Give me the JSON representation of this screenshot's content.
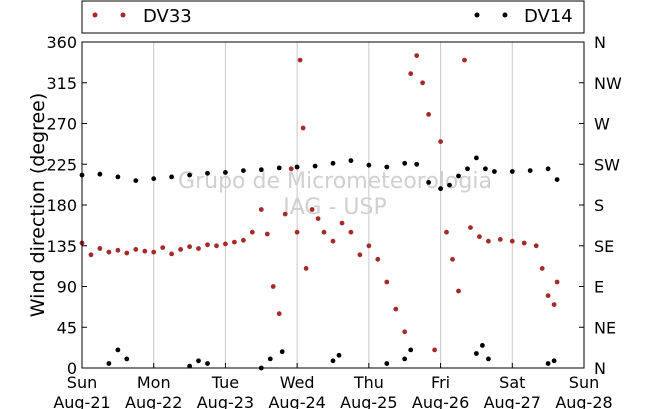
{
  "chart_data": {
    "type": "scatter",
    "ylabel": "Wind direction (degree)",
    "ylim": [
      0,
      360
    ],
    "y_ticks": [
      0,
      45,
      90,
      135,
      180,
      225,
      270,
      315,
      360
    ],
    "y_ticks_right": [
      "N",
      "NE",
      "E",
      "SE",
      "S",
      "SW",
      "W",
      "NW",
      "N"
    ],
    "xlim": [
      "2014-08-21",
      "2014-08-28"
    ],
    "x_ticks": [
      {
        "day": "Sun",
        "date": "Aug-21"
      },
      {
        "day": "Mon",
        "date": "Aug-22"
      },
      {
        "day": "Tue",
        "date": "Aug-23"
      },
      {
        "day": "Wed",
        "date": "Aug-24"
      },
      {
        "day": "Thu",
        "date": "Aug-25"
      },
      {
        "day": "Fri",
        "date": "Aug-26"
      },
      {
        "day": "Sat",
        "date": "Aug-27"
      },
      {
        "day": "Sun",
        "date": "Aug-28"
      }
    ],
    "grid": "vertical",
    "legend_position": "top",
    "watermark": [
      "Grupo de Micrometeorologia",
      "IAG - USP"
    ],
    "series": [
      {
        "name": "DV33",
        "color": "#a52a2a",
        "points": [
          [
            "2014-08-21 00:00",
            138
          ],
          [
            "2014-08-21 03:00",
            125
          ],
          [
            "2014-08-21 06:00",
            132
          ],
          [
            "2014-08-21 09:00",
            128
          ],
          [
            "2014-08-21 12:00",
            130
          ],
          [
            "2014-08-21 15:00",
            127
          ],
          [
            "2014-08-21 18:00",
            131
          ],
          [
            "2014-08-21 21:00",
            129
          ],
          [
            "2014-08-22 00:00",
            128
          ],
          [
            "2014-08-22 03:00",
            133
          ],
          [
            "2014-08-22 06:00",
            126
          ],
          [
            "2014-08-22 09:00",
            131
          ],
          [
            "2014-08-22 12:00",
            134
          ],
          [
            "2014-08-22 15:00",
            132
          ],
          [
            "2014-08-22 18:00",
            136
          ],
          [
            "2014-08-22 21:00",
            135
          ],
          [
            "2014-08-23 00:00",
            137
          ],
          [
            "2014-08-23 03:00",
            139
          ],
          [
            "2014-08-23 06:00",
            141
          ],
          [
            "2014-08-23 09:00",
            150
          ],
          [
            "2014-08-23 12:00",
            175
          ],
          [
            "2014-08-23 14:00",
            148
          ],
          [
            "2014-08-23 16:00",
            90
          ],
          [
            "2014-08-23 18:00",
            60
          ],
          [
            "2014-08-23 20:00",
            170
          ],
          [
            "2014-08-23 22:00",
            220
          ],
          [
            "2014-08-24 00:00",
            150
          ],
          [
            "2014-08-24 01:00",
            340
          ],
          [
            "2014-08-24 02:00",
            265
          ],
          [
            "2014-08-24 03:00",
            110
          ],
          [
            "2014-08-24 05:00",
            175
          ],
          [
            "2014-08-24 07:00",
            165
          ],
          [
            "2014-08-24 09:00",
            150
          ],
          [
            "2014-08-24 12:00",
            140
          ],
          [
            "2014-08-24 15:00",
            160
          ],
          [
            "2014-08-24 18:00",
            150
          ],
          [
            "2014-08-24 21:00",
            125
          ],
          [
            "2014-08-25 00:00",
            135
          ],
          [
            "2014-08-25 03:00",
            120
          ],
          [
            "2014-08-25 06:00",
            95
          ],
          [
            "2014-08-25 09:00",
            65
          ],
          [
            "2014-08-25 12:00",
            40
          ],
          [
            "2014-08-25 14:00",
            325
          ],
          [
            "2014-08-25 16:00",
            345
          ],
          [
            "2014-08-25 18:00",
            315
          ],
          [
            "2014-08-25 20:00",
            280
          ],
          [
            "2014-08-25 22:00",
            20
          ],
          [
            "2014-08-26 00:00",
            250
          ],
          [
            "2014-08-26 02:00",
            150
          ],
          [
            "2014-08-26 04:00",
            120
          ],
          [
            "2014-08-26 06:00",
            85
          ],
          [
            "2014-08-26 08:00",
            340
          ],
          [
            "2014-08-26 10:00",
            155
          ],
          [
            "2014-08-26 13:00",
            145
          ],
          [
            "2014-08-26 16:00",
            140
          ],
          [
            "2014-08-26 20:00",
            142
          ],
          [
            "2014-08-27 00:00",
            140
          ],
          [
            "2014-08-27 04:00",
            138
          ],
          [
            "2014-08-27 08:00",
            135
          ],
          [
            "2014-08-27 10:00",
            110
          ],
          [
            "2014-08-27 12:00",
            80
          ],
          [
            "2014-08-27 14:00",
            70
          ],
          [
            "2014-08-27 15:00",
            95
          ]
        ]
      },
      {
        "name": "DV14",
        "color": "#000000",
        "points": [
          [
            "2014-08-21 00:00",
            213
          ],
          [
            "2014-08-21 06:00",
            214
          ],
          [
            "2014-08-21 12:00",
            211
          ],
          [
            "2014-08-21 18:00",
            207
          ],
          [
            "2014-08-22 00:00",
            209
          ],
          [
            "2014-08-22 06:00",
            211
          ],
          [
            "2014-08-22 12:00",
            213
          ],
          [
            "2014-08-22 18:00",
            215
          ],
          [
            "2014-08-23 00:00",
            216
          ],
          [
            "2014-08-23 06:00",
            218
          ],
          [
            "2014-08-23 12:00",
            219
          ],
          [
            "2014-08-23 18:00",
            221
          ],
          [
            "2014-08-24 00:00",
            222
          ],
          [
            "2014-08-24 06:00",
            223
          ],
          [
            "2014-08-24 12:00",
            226
          ],
          [
            "2014-08-24 18:00",
            229
          ],
          [
            "2014-08-25 00:00",
            224
          ],
          [
            "2014-08-25 06:00",
            222
          ],
          [
            "2014-08-25 12:00",
            226
          ],
          [
            "2014-08-25 16:00",
            225
          ],
          [
            "2014-08-25 20:00",
            205
          ],
          [
            "2014-08-26 00:00",
            198
          ],
          [
            "2014-08-26 03:00",
            202
          ],
          [
            "2014-08-26 06:00",
            212
          ],
          [
            "2014-08-26 09:00",
            220
          ],
          [
            "2014-08-26 12:00",
            232
          ],
          [
            "2014-08-26 15:00",
            220
          ],
          [
            "2014-08-26 18:00",
            217
          ],
          [
            "2014-08-27 00:00",
            217
          ],
          [
            "2014-08-27 06:00",
            218
          ],
          [
            "2014-08-27 12:00",
            220
          ],
          [
            "2014-08-27 15:00",
            208
          ],
          [
            "2014-08-21 09:00",
            5
          ],
          [
            "2014-08-21 12:00",
            20
          ],
          [
            "2014-08-21 15:00",
            10
          ],
          [
            "2014-08-22 12:00",
            2
          ],
          [
            "2014-08-22 15:00",
            8
          ],
          [
            "2014-08-22 18:00",
            5
          ],
          [
            "2014-08-23 12:00",
            0
          ],
          [
            "2014-08-23 15:00",
            10
          ],
          [
            "2014-08-23 19:00",
            18
          ],
          [
            "2014-08-24 12:00",
            8
          ],
          [
            "2014-08-24 14:00",
            14
          ],
          [
            "2014-08-25 06:00",
            5
          ],
          [
            "2014-08-25 12:00",
            10
          ],
          [
            "2014-08-25 14:00",
            20
          ],
          [
            "2014-08-26 12:00",
            16
          ],
          [
            "2014-08-26 14:00",
            25
          ],
          [
            "2014-08-26 16:00",
            10
          ],
          [
            "2014-08-27 12:00",
            5
          ],
          [
            "2014-08-27 14:00",
            8
          ]
        ]
      }
    ]
  }
}
